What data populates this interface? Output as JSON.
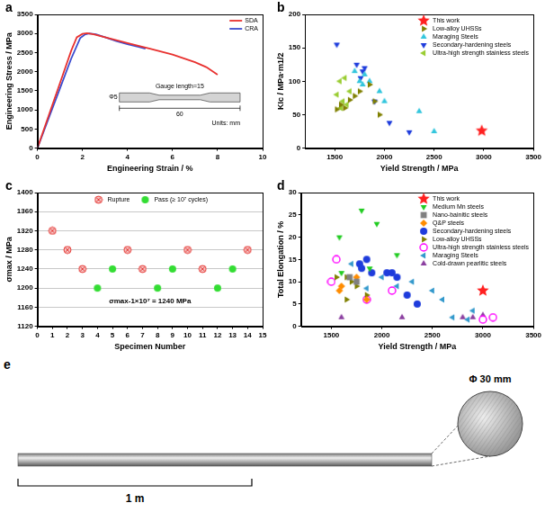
{
  "chart_data": [
    {
      "panel": "a",
      "type": "line",
      "xlabel": "Engineering Strain / %",
      "ylabel": "Engineering Stress / MPa",
      "xlim": [
        0,
        10
      ],
      "xticks": [
        0,
        2,
        4,
        6,
        8,
        10
      ],
      "ylim": [
        0,
        3500
      ],
      "yticks": [
        0,
        500,
        1000,
        1500,
        2000,
        2500,
        3000,
        3500
      ],
      "grid": false,
      "legend": "top-right",
      "series": [
        {
          "name": "SDA",
          "color": "#e8312f",
          "line_style": "solid",
          "x": [
            0,
            0.5,
            1.0,
            1.5,
            1.75,
            2.0,
            2.2,
            2.5,
            3,
            4,
            5,
            6,
            7,
            7.5,
            8.0
          ],
          "values": [
            0,
            850,
            1700,
            2550,
            2900,
            2990,
            3010,
            2980,
            2900,
            2750,
            2600,
            2450,
            2250,
            2120,
            1920
          ]
        },
        {
          "name": "CRA",
          "color": "#3b4ccf",
          "line_style": "solid",
          "x": [
            0,
            0.5,
            1.0,
            1.5,
            1.9,
            2.1,
            2.3,
            2.6,
            3,
            3.5,
            4,
            4.5,
            4.8
          ],
          "values": [
            0,
            780,
            1560,
            2340,
            2880,
            2970,
            3000,
            2980,
            2900,
            2800,
            2720,
            2650,
            2600
          ]
        }
      ],
      "inset": {
        "gauge": "Gauge length=15",
        "diameter": "Φ5",
        "length": "60",
        "units": "Units: mm"
      }
    },
    {
      "panel": "b",
      "type": "scatter",
      "xlabel": "Yield Strength / MPa",
      "ylabel": "KIc / MPa·m1/2",
      "xlim": [
        1200,
        3500
      ],
      "xticks": [
        1500,
        2000,
        2500,
        3000,
        3500
      ],
      "ylim": [
        0,
        200
      ],
      "yticks": [
        0,
        50,
        100,
        150,
        200
      ],
      "grid": false,
      "legend": "top-right",
      "series": [
        {
          "name": "This work",
          "color": "#ff2020",
          "marker": "star",
          "x": [
            2980
          ],
          "values": [
            26
          ]
        },
        {
          "name": "Low-alloy UHSSs",
          "color": "#808000",
          "marker": "triangle-right",
          "x": [
            1520,
            1560,
            1600,
            1650,
            1700,
            1750,
            1850,
            1900,
            1950
          ],
          "values": [
            58,
            65,
            60,
            72,
            78,
            85,
            95,
            70,
            50
          ]
        },
        {
          "name": "Maraging Steels",
          "color": "#33c6dd",
          "marker": "triangle-up",
          "x": [
            1700,
            1750,
            1780,
            1800,
            1850,
            1950,
            2000,
            2350,
            2500
          ],
          "values": [
            115,
            100,
            95,
            110,
            100,
            85,
            70,
            55,
            25
          ]
        },
        {
          "name": "Secondary-hardening steels",
          "color": "#1e3cdc",
          "marker": "triangle-down",
          "x": [
            1520,
            1720,
            1760,
            1780,
            1800,
            1900,
            2050,
            2250
          ],
          "values": [
            155,
            125,
            105,
            115,
            120,
            70,
            38,
            24
          ]
        },
        {
          "name": "Ultra-high strength stainless steels",
          "color": "#9acd32",
          "marker": "triangle-left",
          "x": [
            1520,
            1550,
            1560,
            1580,
            1600,
            1620,
            1650
          ],
          "values": [
            80,
            100,
            60,
            70,
            105,
            65,
            85
          ]
        }
      ]
    },
    {
      "panel": "c",
      "type": "scatter",
      "xlabel": "Specimen Number",
      "ylabel": "σmax / MPa",
      "xlim": [
        0,
        15
      ],
      "xticks": [
        0,
        1,
        2,
        3,
        4,
        5,
        6,
        7,
        8,
        9,
        10,
        11,
        12,
        13,
        14,
        15
      ],
      "ylim": [
        1120,
        1400
      ],
      "yticks": [
        1120,
        1160,
        1200,
        1240,
        1280,
        1320,
        1360,
        1400
      ],
      "grid": "y",
      "legend": "top",
      "annotation": "σmax-1×10⁷ = 1240 MPa",
      "series": [
        {
          "name": "Rupture",
          "color": "#e53935",
          "marker": "circle-x",
          "x": [
            1,
            2,
            3,
            6,
            7,
            10,
            11,
            14
          ],
          "values": [
            1320,
            1280,
            1240,
            1280,
            1240,
            1280,
            1240,
            1280
          ]
        },
        {
          "name": "Pass (≥ 10⁷ cycles)",
          "color": "#33dd33",
          "marker": "circle",
          "x": [
            4,
            5,
            8,
            9,
            12,
            13
          ],
          "values": [
            1200,
            1240,
            1200,
            1240,
            1200,
            1240
          ]
        }
      ]
    },
    {
      "panel": "d",
      "type": "scatter",
      "xlabel": "Yield Strength / MPa",
      "ylabel": "Total Elongation / %",
      "xlim": [
        1200,
        3500
      ],
      "xticks": [
        1500,
        2000,
        2500,
        3000,
        3500
      ],
      "ylim": [
        0,
        30
      ],
      "yticks": [
        0,
        5,
        10,
        15,
        20,
        25,
        30
      ],
      "grid": false,
      "legend": "top-right",
      "series": [
        {
          "name": "This work",
          "color": "#ff2020",
          "marker": "star",
          "x": [
            3000
          ],
          "values": [
            8
          ]
        },
        {
          "name": "Medium Mn steels",
          "color": "#22cc22",
          "marker": "triangle-down",
          "x": [
            1580,
            1600,
            1800,
            1880,
            1950,
            2150
          ],
          "values": [
            20,
            12,
            26,
            13,
            23,
            16
          ]
        },
        {
          "name": "Nano-bainitic steels",
          "color": "#808080",
          "marker": "square",
          "x": [
            1680,
            1750
          ],
          "values": [
            11,
            10
          ]
        },
        {
          "name": "Q&P steels",
          "color": "#ff8c00",
          "marker": "diamond",
          "x": [
            1580,
            1600,
            1750,
            1850
          ],
          "values": [
            8,
            9,
            11,
            6
          ]
        },
        {
          "name": "Secondary-hardening steels",
          "color": "#1e3cdc",
          "marker": "circle",
          "x": [
            1780,
            1800,
            1850,
            1900,
            2050,
            2100,
            2150,
            2250,
            2350
          ],
          "values": [
            14,
            13,
            15,
            12,
            12,
            12,
            11,
            7,
            5
          ]
        },
        {
          "name": "Low-alloy UHSSs",
          "color": "#808000",
          "marker": "triangle-right",
          "x": [
            1550,
            1650,
            1650,
            1700,
            1750,
            1850
          ],
          "values": [
            11,
            11,
            6,
            10,
            9,
            7
          ]
        },
        {
          "name": "Ultra-high strength stainless steels",
          "color": "#ff00ff",
          "marker": "circle-open",
          "x": [
            1500,
            1550,
            1850,
            2100,
            3000,
            3100
          ],
          "values": [
            10,
            15,
            6,
            8,
            1.5,
            2
          ]
        },
        {
          "name": "Maraging Steels",
          "color": "#3399cc",
          "marker": "triangle-left",
          "x": [
            1700,
            1850,
            2000,
            2150,
            2300,
            2500,
            2600,
            2700,
            2850,
            2900
          ],
          "values": [
            14,
            8.5,
            11,
            9,
            10,
            8,
            6,
            2,
            1.5,
            3.5
          ]
        },
        {
          "name": "Cold-drawn pearlitic steels",
          "color": "#8b3fa0",
          "marker": "triangle-up",
          "x": [
            1600,
            2200,
            2800,
            2900,
            3000
          ],
          "values": [
            2,
            2,
            2,
            2,
            2.5
          ]
        }
      ]
    }
  ],
  "panel_e": {
    "panel": "e",
    "length_label": "1 m",
    "diameter_label": "Φ 30 mm"
  }
}
